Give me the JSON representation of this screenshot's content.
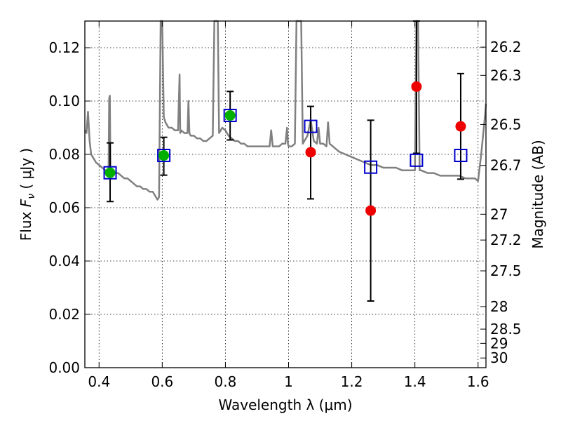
{
  "chart_data": {
    "type": "scatter",
    "xlabel": "Wavelength  λ (μm)",
    "ylabel_left": "Flux  F_ν  ( μJy )",
    "ylabel_right": "Magnitude (AB)",
    "xlim": [
      0.355,
      1.625
    ],
    "ylim": [
      0.0,
      0.13
    ],
    "grid": true,
    "x_ticks": [
      0.4,
      0.6,
      0.8,
      1.0,
      1.2,
      1.4,
      1.6
    ],
    "x_tick_labels": [
      "0.4",
      "0.6",
      "0.8",
      "1",
      "1.2",
      "1.4",
      "1.6"
    ],
    "y_ticks": [
      0.0,
      0.02,
      0.04,
      0.06,
      0.08,
      0.1,
      0.12
    ],
    "y_tick_labels": [
      "0.00",
      "0.02",
      "0.04",
      "0.06",
      "0.08",
      "0.10",
      "0.12"
    ],
    "right_ticks": [
      {
        "mag": 26.2,
        "label": "26.2"
      },
      {
        "mag": 26.3,
        "label": "26.3"
      },
      {
        "mag": 26.5,
        "label": "26.5"
      },
      {
        "mag": 26.7,
        "label": "26.7"
      },
      {
        "mag": 27.0,
        "label": "27"
      },
      {
        "mag": 27.2,
        "label": "27.2"
      },
      {
        "mag": 27.5,
        "label": "27.5"
      },
      {
        "mag": 28.0,
        "label": "28"
      },
      {
        "mag": 28.5,
        "label": "28.5"
      },
      {
        "mag": 29.0,
        "label": "29"
      },
      {
        "mag": 30.0,
        "label": "30"
      }
    ],
    "model_spectrum": {
      "color": "#808080",
      "x": [
        0.355,
        0.36,
        0.365,
        0.37,
        0.375,
        0.38,
        0.39,
        0.4,
        0.41,
        0.42,
        0.43,
        0.432,
        0.434,
        0.436,
        0.44,
        0.45,
        0.46,
        0.47,
        0.48,
        0.49,
        0.5,
        0.51,
        0.52,
        0.53,
        0.54,
        0.55,
        0.56,
        0.57,
        0.58,
        0.585,
        0.59,
        0.595,
        0.6,
        0.605,
        0.61,
        0.62,
        0.63,
        0.64,
        0.65,
        0.655,
        0.657,
        0.66,
        0.67,
        0.68,
        0.683,
        0.686,
        0.69,
        0.7,
        0.71,
        0.72,
        0.73,
        0.74,
        0.75,
        0.76,
        0.765,
        0.768,
        0.772,
        0.776,
        0.78,
        0.785,
        0.79,
        0.8,
        0.81,
        0.82,
        0.83,
        0.84,
        0.85,
        0.86,
        0.87,
        0.88,
        0.89,
        0.9,
        0.91,
        0.92,
        0.93,
        0.94,
        0.945,
        0.95,
        0.955,
        0.96,
        0.97,
        0.98,
        0.99,
        0.995,
        0.998,
        1.0,
        1.01,
        1.02,
        1.025,
        1.028,
        1.032,
        1.036,
        1.04,
        1.045,
        1.05,
        1.06,
        1.07,
        1.08,
        1.09,
        1.095,
        1.1,
        1.11,
        1.12,
        1.125,
        1.13,
        1.14,
        1.15,
        1.16,
        1.18,
        1.2,
        1.22,
        1.24,
        1.26,
        1.28,
        1.3,
        1.32,
        1.34,
        1.36,
        1.38,
        1.4,
        1.405,
        1.41,
        1.415,
        1.42,
        1.44,
        1.46,
        1.48,
        1.5,
        1.52,
        1.54,
        1.56,
        1.58,
        1.59,
        1.6,
        1.61,
        1.62,
        1.625
      ],
      "y": [
        0.089,
        0.088,
        0.096,
        0.085,
        0.08,
        0.079,
        0.077,
        0.076,
        0.075,
        0.074,
        0.073,
        0.101,
        0.102,
        0.075,
        0.074,
        0.073,
        0.073,
        0.072,
        0.071,
        0.071,
        0.07,
        0.069,
        0.068,
        0.068,
        0.067,
        0.067,
        0.066,
        0.066,
        0.064,
        0.063,
        0.064,
        0.13,
        0.13,
        0.094,
        0.092,
        0.09,
        0.09,
        0.089,
        0.089,
        0.11,
        0.088,
        0.089,
        0.088,
        0.088,
        0.1,
        0.088,
        0.087,
        0.087,
        0.086,
        0.086,
        0.085,
        0.085,
        0.086,
        0.087,
        0.13,
        0.13,
        0.13,
        0.13,
        0.088,
        0.089,
        0.09,
        0.089,
        0.087,
        0.086,
        0.085,
        0.085,
        0.084,
        0.084,
        0.083,
        0.083,
        0.083,
        0.083,
        0.083,
        0.083,
        0.083,
        0.083,
        0.089,
        0.083,
        0.083,
        0.083,
        0.083,
        0.084,
        0.084,
        0.09,
        0.084,
        0.083,
        0.083,
        0.084,
        0.13,
        0.13,
        0.13,
        0.13,
        0.13,
        0.084,
        0.085,
        0.087,
        0.093,
        0.085,
        0.084,
        0.09,
        0.084,
        0.084,
        0.083,
        0.092,
        0.084,
        0.083,
        0.082,
        0.081,
        0.08,
        0.079,
        0.078,
        0.077,
        0.076,
        0.076,
        0.075,
        0.075,
        0.075,
        0.074,
        0.074,
        0.074,
        0.13,
        0.13,
        0.074,
        0.074,
        0.073,
        0.073,
        0.072,
        0.072,
        0.072,
        0.072,
        0.071,
        0.071,
        0.071,
        0.07,
        0.08,
        0.092,
        0.099
      ]
    },
    "model_points": {
      "marker": "open-square",
      "color": "#0000cc",
      "x": [
        0.435,
        0.605,
        0.815,
        1.07,
        1.26,
        1.405,
        1.545
      ],
      "y": [
        0.0731,
        0.0796,
        0.0946,
        0.0905,
        0.0752,
        0.0778,
        0.0796
      ]
    },
    "observed_points": {
      "marker": "filled-circle",
      "points": [
        {
          "x": 0.435,
          "y": 0.0731,
          "err_low": 0.0623,
          "err_high": 0.0843,
          "color": "#00b000"
        },
        {
          "x": 0.605,
          "y": 0.0796,
          "err_low": 0.0722,
          "err_high": 0.0864,
          "color": "#00b000"
        },
        {
          "x": 0.815,
          "y": 0.0946,
          "err_low": 0.0854,
          "err_high": 0.1036,
          "color": "#00b000"
        },
        {
          "x": 1.07,
          "y": 0.0808,
          "err_low": 0.0633,
          "err_high": 0.098,
          "color": "#ee0000"
        },
        {
          "x": 1.26,
          "y": 0.0589,
          "err_low": 0.025,
          "err_high": 0.0928,
          "color": "#ee0000"
        },
        {
          "x": 1.405,
          "y": 0.1054,
          "err_low": 0.0804,
          "err_high": 0.13,
          "color": "#ee0000"
        },
        {
          "x": 1.545,
          "y": 0.0905,
          "err_low": 0.0707,
          "err_high": 0.1103,
          "color": "#ee0000"
        }
      ]
    }
  }
}
